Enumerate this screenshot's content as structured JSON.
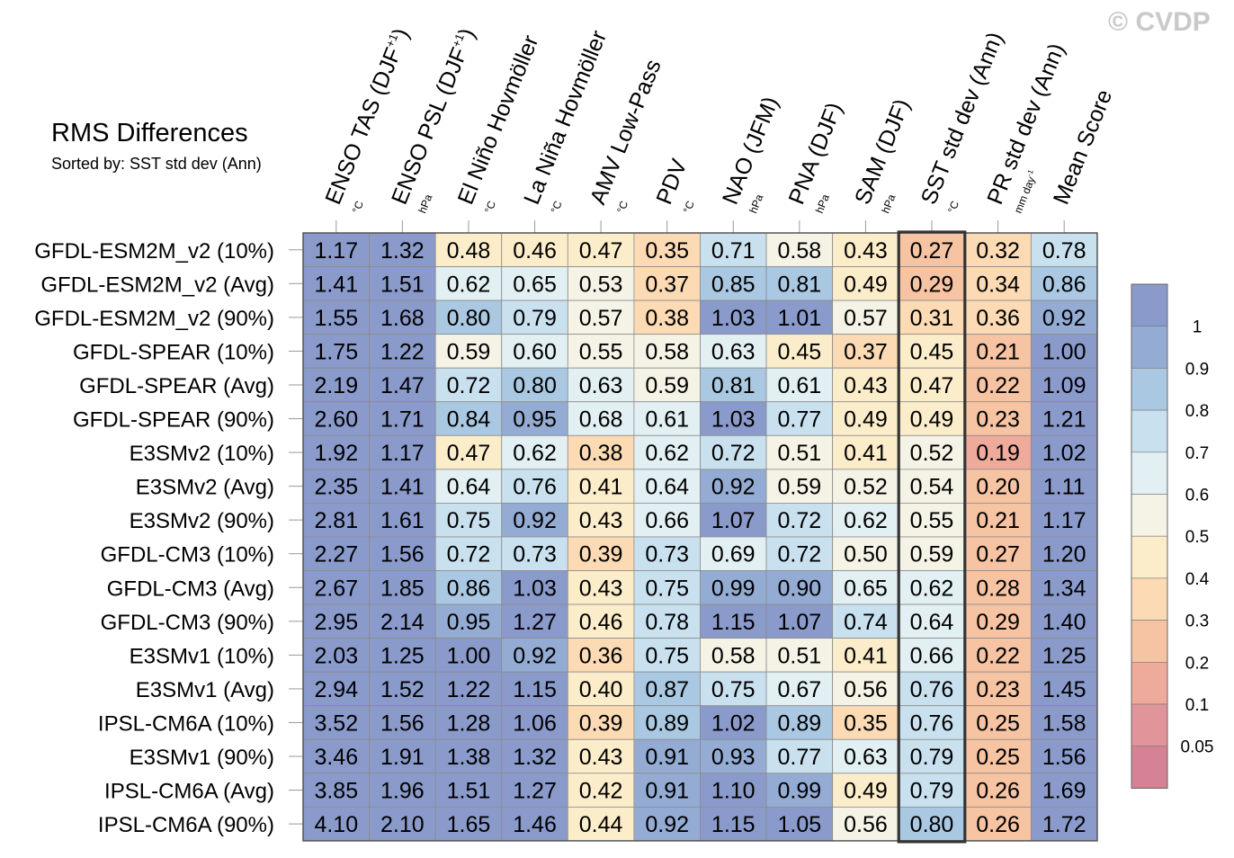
{
  "chart_data": {
    "type": "heatmap",
    "title": "RMS Differences",
    "subtitle": "Sorted by: SST std dev (Ann)",
    "watermark": "© CVDP",
    "columns": [
      {
        "label": "ENSO TAS (DJF",
        "sup": "+1",
        "close": ")",
        "unit": "°C"
      },
      {
        "label": "ENSO PSL (DJF",
        "sup": "+1",
        "close": ")",
        "unit": "hPa"
      },
      {
        "label": "El Niño Hovmöller",
        "unit": "°C"
      },
      {
        "label": "La Niña Hovmöller",
        "unit": "°C"
      },
      {
        "label": "AMV Low-Pass",
        "unit": "°C"
      },
      {
        "label": "PDV",
        "unit": "°C"
      },
      {
        "label": "NAO (JFM)",
        "unit": "hPa"
      },
      {
        "label": "PNA (DJF)",
        "unit": "hPa"
      },
      {
        "label": "SAM (DJF)",
        "unit": "hPa"
      },
      {
        "label": "SST std dev (Ann)",
        "unit": "°C"
      },
      {
        "label": "PR std dev (Ann)",
        "unit": "mm day",
        "unit_sup": "-1"
      },
      {
        "label": "Mean Score",
        "unit": ""
      }
    ],
    "rows": [
      {
        "label": "GFDL-ESM2M_v2 (10%)",
        "values": [
          1.17,
          1.32,
          0.48,
          0.46,
          0.47,
          0.35,
          0.71,
          0.58,
          0.43,
          0.27,
          0.32,
          0.78
        ]
      },
      {
        "label": "GFDL-ESM2M_v2 (Avg)",
        "values": [
          1.41,
          1.51,
          0.62,
          0.65,
          0.53,
          0.37,
          0.85,
          0.81,
          0.49,
          0.29,
          0.34,
          0.86
        ]
      },
      {
        "label": "GFDL-ESM2M_v2 (90%)",
        "values": [
          1.55,
          1.68,
          0.8,
          0.79,
          0.57,
          0.38,
          1.03,
          1.01,
          0.57,
          0.31,
          0.36,
          0.92
        ]
      },
      {
        "label": "GFDL-SPEAR (10%)",
        "values": [
          1.75,
          1.22,
          0.59,
          0.6,
          0.55,
          0.58,
          0.63,
          0.45,
          0.37,
          0.45,
          0.21,
          1.0
        ]
      },
      {
        "label": "GFDL-SPEAR (Avg)",
        "values": [
          2.19,
          1.47,
          0.72,
          0.8,
          0.63,
          0.59,
          0.81,
          0.61,
          0.43,
          0.47,
          0.22,
          1.09
        ]
      },
      {
        "label": "GFDL-SPEAR (90%)",
        "values": [
          2.6,
          1.71,
          0.84,
          0.95,
          0.68,
          0.61,
          1.03,
          0.77,
          0.49,
          0.49,
          0.23,
          1.21
        ]
      },
      {
        "label": "E3SMv2 (10%)",
        "values": [
          1.92,
          1.17,
          0.47,
          0.62,
          0.38,
          0.62,
          0.72,
          0.51,
          0.41,
          0.52,
          0.19,
          1.02
        ]
      },
      {
        "label": "E3SMv2 (Avg)",
        "values": [
          2.35,
          1.41,
          0.64,
          0.76,
          0.41,
          0.64,
          0.92,
          0.59,
          0.52,
          0.54,
          0.2,
          1.11
        ]
      },
      {
        "label": "E3SMv2 (90%)",
        "values": [
          2.81,
          1.61,
          0.75,
          0.92,
          0.43,
          0.66,
          1.07,
          0.72,
          0.62,
          0.55,
          0.21,
          1.17
        ]
      },
      {
        "label": "GFDL-CM3 (10%)",
        "values": [
          2.27,
          1.56,
          0.72,
          0.73,
          0.39,
          0.73,
          0.69,
          0.72,
          0.5,
          0.59,
          0.27,
          1.2
        ]
      },
      {
        "label": "GFDL-CM3 (Avg)",
        "values": [
          2.67,
          1.85,
          0.86,
          1.03,
          0.43,
          0.75,
          0.99,
          0.9,
          0.65,
          0.62,
          0.28,
          1.34
        ]
      },
      {
        "label": "GFDL-CM3 (90%)",
        "values": [
          2.95,
          2.14,
          0.95,
          1.27,
          0.46,
          0.78,
          1.15,
          1.07,
          0.74,
          0.64,
          0.29,
          1.4
        ]
      },
      {
        "label": "E3SMv1 (10%)",
        "values": [
          2.03,
          1.25,
          1.0,
          0.92,
          0.36,
          0.75,
          0.58,
          0.51,
          0.41,
          0.66,
          0.22,
          1.25
        ]
      },
      {
        "label": "E3SMv1 (Avg)",
        "values": [
          2.94,
          1.52,
          1.22,
          1.15,
          0.4,
          0.87,
          0.75,
          0.67,
          0.56,
          0.76,
          0.23,
          1.45
        ]
      },
      {
        "label": "IPSL-CM6A (10%)",
        "values": [
          3.52,
          1.56,
          1.28,
          1.06,
          0.39,
          0.89,
          1.02,
          0.89,
          0.35,
          0.76,
          0.25,
          1.58
        ]
      },
      {
        "label": "E3SMv1 (90%)",
        "values": [
          3.46,
          1.91,
          1.38,
          1.32,
          0.43,
          0.91,
          0.93,
          0.77,
          0.63,
          0.79,
          0.25,
          1.56
        ]
      },
      {
        "label": "IPSL-CM6A (Avg)",
        "values": [
          3.85,
          1.96,
          1.51,
          1.27,
          0.42,
          0.91,
          1.1,
          0.99,
          0.49,
          0.79,
          0.26,
          1.69
        ]
      },
      {
        "label": "IPSL-CM6A (90%)",
        "values": [
          4.1,
          2.1,
          1.65,
          1.46,
          0.44,
          0.92,
          1.15,
          1.05,
          0.56,
          0.8,
          0.26,
          1.72
        ]
      }
    ],
    "highlighted_column": "SST std dev (Ann)",
    "colorbar": {
      "levels": [
        0.05,
        0.1,
        0.2,
        0.3,
        0.4,
        0.5,
        0.6,
        0.7,
        0.8,
        0.9,
        1
      ],
      "tick_labels": [
        "0.05",
        "0.1",
        "0.2",
        "0.3",
        "0.4",
        "0.5",
        "0.6",
        "0.7",
        "0.8",
        "0.9",
        "1"
      ],
      "colors": [
        "#d48294",
        "#e1949a",
        "#eeaa9b",
        "#f6c3a3",
        "#fbdab4",
        "#fcedca",
        "#f4f3e6",
        "#e2eff3",
        "#c9e1ef",
        "#aac8e1",
        "#94acd3",
        "#8a9acb"
      ]
    }
  }
}
